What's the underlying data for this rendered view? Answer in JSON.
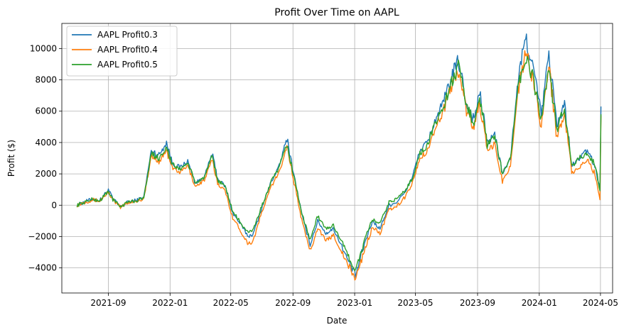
{
  "chart_data": {
    "type": "line",
    "title": "Profit Over Time on AAPL",
    "xlabel": "Date",
    "ylabel": "Profit ($)",
    "xlim": [
      "2021-06-01",
      "2024-05-25"
    ],
    "ylim": [
      -5600,
      11600
    ],
    "x_ticks": [
      "2021-09",
      "2022-01",
      "2022-05",
      "2022-09",
      "2023-01",
      "2023-05",
      "2023-09",
      "2024-01",
      "2024-05"
    ],
    "y_ticks": [
      -4000,
      -2000,
      0,
      2000,
      4000,
      6000,
      8000,
      10000
    ],
    "grid": true,
    "legend_position": "upper-left",
    "x": [
      "2021-07-01",
      "2021-07-15",
      "2021-08-01",
      "2021-08-15",
      "2021-09-01",
      "2021-09-10",
      "2021-09-25",
      "2021-10-10",
      "2021-10-25",
      "2021-11-10",
      "2021-11-25",
      "2021-12-10",
      "2021-12-25",
      "2022-01-05",
      "2022-01-20",
      "2022-02-05",
      "2022-02-20",
      "2022-03-10",
      "2022-03-25",
      "2022-04-05",
      "2022-04-20",
      "2022-05-05",
      "2022-05-20",
      "2022-06-05",
      "2022-06-15",
      "2022-07-01",
      "2022-07-20",
      "2022-08-05",
      "2022-08-20",
      "2022-09-05",
      "2022-09-20",
      "2022-10-05",
      "2022-10-20",
      "2022-11-05",
      "2022-11-20",
      "2022-12-05",
      "2022-12-20",
      "2023-01-03",
      "2023-01-20",
      "2023-02-05",
      "2023-02-20",
      "2023-03-10",
      "2023-03-25",
      "2023-04-10",
      "2023-04-25",
      "2023-05-10",
      "2023-05-25",
      "2023-06-10",
      "2023-06-25",
      "2023-07-10",
      "2023-07-25",
      "2023-08-10",
      "2023-08-25",
      "2023-09-05",
      "2023-09-20",
      "2023-10-05",
      "2023-10-20",
      "2023-11-05",
      "2023-11-20",
      "2023-12-05",
      "2023-12-20",
      "2024-01-05",
      "2024-01-20",
      "2024-02-05",
      "2024-02-20",
      "2024-03-05",
      "2024-03-20",
      "2024-04-05",
      "2024-04-20",
      "2024-04-30",
      "2024-05-02"
    ],
    "series": [
      {
        "name": "AAPL Profit0.3",
        "color": "#1f77b4",
        "values": [
          0,
          200,
          400,
          300,
          1000,
          400,
          -100,
          200,
          300,
          500,
          3500,
          3200,
          4000,
          2700,
          2400,
          2800,
          1400,
          1800,
          3300,
          1700,
          1200,
          -500,
          -1200,
          -2000,
          -1800,
          -200,
          1500,
          2500,
          4300,
          1600,
          -800,
          -2500,
          -1000,
          -1800,
          -1500,
          -2500,
          -3600,
          -4500,
          -2500,
          -1000,
          -1500,
          0,
          200,
          800,
          1800,
          3500,
          4000,
          5500,
          6500,
          8000,
          9300,
          6500,
          5500,
          7200,
          4000,
          4500,
          2000,
          3000,
          8000,
          10700,
          8800,
          5700,
          9800,
          5000,
          6500,
          2500,
          3000,
          3500,
          2500,
          1000,
          6300
        ]
      },
      {
        "name": "AAPL Profit0.4",
        "color": "#ff7f0e",
        "values": [
          0,
          180,
          350,
          260,
          850,
          330,
          -150,
          180,
          250,
          420,
          3100,
          2800,
          3500,
          2400,
          2100,
          2500,
          1200,
          1600,
          2900,
          1400,
          900,
          -800,
          -1600,
          -2500,
          -2200,
          -500,
          1200,
          2100,
          3800,
          1200,
          -1200,
          -2900,
          -1400,
          -2300,
          -1900,
          -2900,
          -3900,
          -4700,
          -2900,
          -1400,
          -1800,
          -300,
          -100,
          500,
          1400,
          3000,
          3500,
          5000,
          6000,
          7500,
          8600,
          6000,
          4900,
          6600,
          3400,
          3900,
          1500,
          2500,
          7300,
          9700,
          8000,
          5200,
          8900,
          4400,
          5900,
          2000,
          2400,
          2900,
          2000,
          400,
          5700
        ]
      },
      {
        "name": "AAPL Profit0.5",
        "color": "#2ca02c",
        "values": [
          0,
          190,
          380,
          280,
          900,
          350,
          -80,
          200,
          280,
          460,
          3300,
          3000,
          3700,
          2600,
          2300,
          2700,
          1400,
          1800,
          3100,
          1600,
          1200,
          -400,
          -1100,
          -1800,
          -1500,
          -100,
          1500,
          2400,
          3900,
          1500,
          -700,
          -2200,
          -700,
          -1500,
          -1300,
          -2200,
          -3300,
          -4200,
          -2300,
          -900,
          -1200,
          200,
          400,
          900,
          1700,
          3300,
          3800,
          5300,
          6200,
          7700,
          8800,
          6300,
          5300,
          7000,
          3800,
          4400,
          2000,
          3000,
          7600,
          9300,
          8000,
          5500,
          8800,
          4800,
          6300,
          2500,
          3000,
          3300,
          2600,
          1000,
          5800
        ]
      }
    ]
  }
}
